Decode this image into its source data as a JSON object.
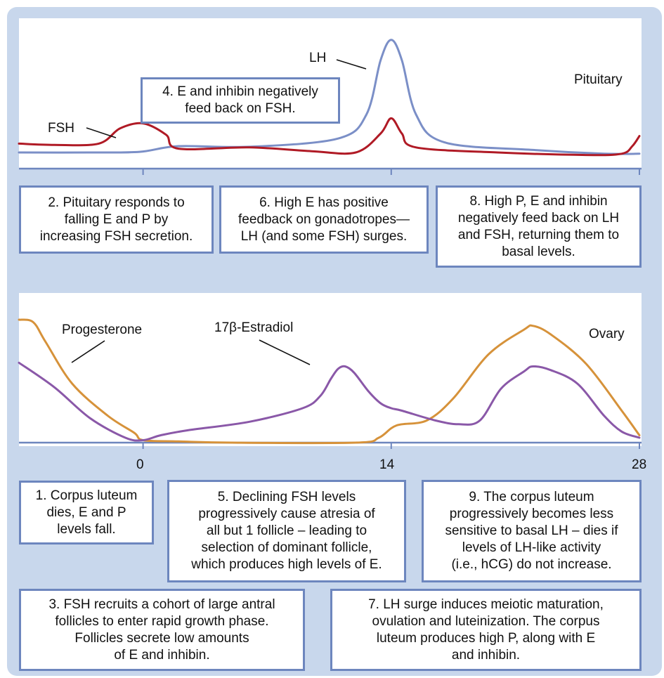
{
  "chart_data": [
    {
      "type": "line",
      "panel_label": "Pituitary",
      "x_ticks": [
        0,
        14,
        28
      ],
      "series": [
        {
          "name": "LH",
          "color": "#7b8fc7",
          "points": [
            [
              -7,
              5
            ],
            [
              -3,
              5
            ],
            [
              -0.2,
              5.5
            ],
            [
              2,
              10
            ],
            [
              6,
              9.5
            ],
            [
              11,
              16
            ],
            [
              12.6,
              35
            ],
            [
              13.4,
              78
            ],
            [
              14,
              94
            ],
            [
              14.6,
              78
            ],
            [
              15.4,
              35
            ],
            [
              17,
              13
            ],
            [
              22,
              7
            ],
            [
              26,
              4
            ],
            [
              28,
              4
            ]
          ]
        },
        {
          "name": "FSH",
          "color": "#b01a25",
          "points": [
            [
              -7,
              12
            ],
            [
              -5,
              11
            ],
            [
              -2.5,
              12
            ],
            [
              -1.3,
              24
            ],
            [
              0,
              28
            ],
            [
              1.3,
              19
            ],
            [
              2,
              8
            ],
            [
              6,
              9
            ],
            [
              9.5,
              6
            ],
            [
              12,
              5
            ],
            [
              13.4,
              20
            ],
            [
              14,
              32
            ],
            [
              14.6,
              20
            ],
            [
              15.4,
              9
            ],
            [
              20,
              5
            ],
            [
              25,
              3
            ],
            [
              27,
              4
            ],
            [
              27.6,
              10
            ],
            [
              28,
              18
            ]
          ]
        }
      ]
    },
    {
      "type": "line",
      "panel_label": "Ovary",
      "x_ticks": [
        0,
        14,
        28
      ],
      "x_tick_labels": [
        "0",
        "14",
        "28"
      ],
      "series": [
        {
          "name": "Progesterone",
          "color": "#d6923a",
          "points": [
            [
              -7,
              100
            ],
            [
              -6.2,
              98
            ],
            [
              -5.5,
              82
            ],
            [
              -4,
              48
            ],
            [
              -2,
              22
            ],
            [
              -0.5,
              8
            ],
            [
              0,
              2
            ],
            [
              2,
              1
            ],
            [
              5,
              0
            ],
            [
              12,
              0
            ],
            [
              13.3,
              4
            ],
            [
              14.3,
              14
            ],
            [
              16,
              18
            ],
            [
              17.5,
              36
            ],
            [
              19.5,
              72
            ],
            [
              21.5,
              92
            ],
            [
              22,
              95
            ],
            [
              23,
              88
            ],
            [
              25,
              64
            ],
            [
              27,
              26
            ],
            [
              28,
              6
            ]
          ]
        },
        {
          "name": "17β-Estradiol",
          "color": "#8a58a8",
          "points": [
            [
              -7,
              65
            ],
            [
              -5,
              45
            ],
            [
              -3,
              20
            ],
            [
              -1,
              4
            ],
            [
              0,
              2
            ],
            [
              1,
              6
            ],
            [
              2.5,
              10
            ],
            [
              6,
              17
            ],
            [
              9,
              28
            ],
            [
              10,
              38
            ],
            [
              10.6,
              52
            ],
            [
              11,
              60
            ],
            [
              11.4,
              62
            ],
            [
              11.9,
              57
            ],
            [
              12.7,
              42
            ],
            [
              13.4,
              32
            ],
            [
              14,
              28
            ],
            [
              14.6,
              26
            ],
            [
              16.5,
              18
            ],
            [
              17.8,
              15
            ],
            [
              19,
              18
            ],
            [
              20.2,
              44
            ],
            [
              21.5,
              58
            ],
            [
              22,
              62
            ],
            [
              23,
              59
            ],
            [
              24.5,
              48
            ],
            [
              26,
              22
            ],
            [
              27,
              9
            ],
            [
              28,
              4
            ]
          ]
        }
      ]
    }
  ],
  "labels": {
    "lh": "LH",
    "fsh": "FSH",
    "pituitary": "Pituitary",
    "progesterone": "Progesterone",
    "estradiol": "17β-Estradiol",
    "ovary": "Ovary",
    "tick_0": "0",
    "tick_14": "14",
    "tick_28": "28"
  },
  "notes": {
    "n1": "1. Corpus luteum\ndies, E and P\nlevels fall.",
    "n2": "2. Pituitary responds to\nfalling E and P by\nincreasing FSH secretion.",
    "n3": "3. FSH recruits a cohort of large antral\nfollicles to enter rapid growth phase.\nFollicles secrete low amounts\nof E and inhibin.",
    "n4": "4. E and inhibin negatively\nfeed back on FSH.",
    "n5": "5. Declining FSH levels\nprogressively cause atresia of\nall but 1 follicle – leading to\nselection of dominant follicle,\nwhich produces high levels of E.",
    "n6": "6. High E has positive\nfeedback on gonadotropes—\nLH (and some FSH) surges.",
    "n7": "7. LH surge induces meiotic maturation,\novulation and luteinization.  The corpus\nluteum produces high P, along with E\nand inhibin.",
    "n8": "8. High P, E and inhibin\nnegatively feed back on LH\nand FSH, returning them to\nbasal levels.",
    "n9": "9. The corpus luteum\nprogressively becomes less\nsensitive to basal LH – dies if\nlevels of LH-like activity\n(i.e., hCG) do not increase."
  },
  "colors": {
    "frame_background": "#c8d7ec",
    "box_border": "#6d86be",
    "axis": "#6d86be"
  }
}
